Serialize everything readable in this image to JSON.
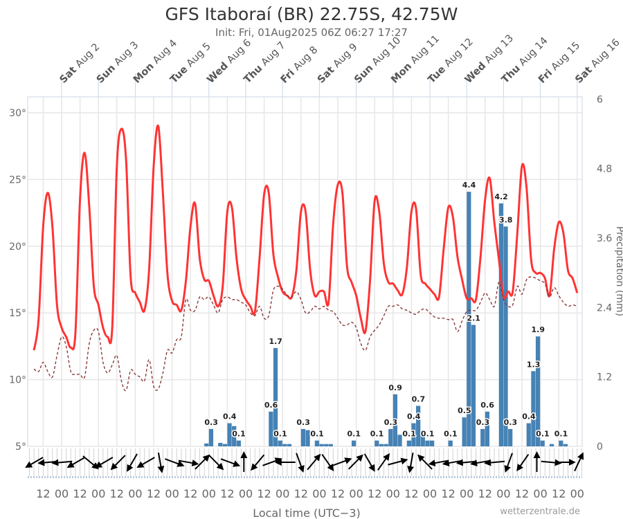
{
  "header": {
    "title": "GFS Itaboraí (BR) 22.75S, 42.75W",
    "subtitle": "Init: Fri, 01Aug2025 06Z 06:27 17:27"
  },
  "footer": {
    "xlabel": "Local time (UTC−3)",
    "credit": "wetterzentrale.de"
  },
  "chart_data": {
    "type": "line+bar",
    "xlabel": "Local time (UTC−3)",
    "y_left": {
      "ticks": [
        30,
        25,
        20,
        15,
        10,
        5
      ],
      "tick_labels": [
        "30°",
        "25°",
        "20°",
        "15°",
        "10°",
        "5°"
      ],
      "range": [
        5,
        31.2
      ]
    },
    "y_right": {
      "label": "Precipitation (mm)",
      "ticks": [
        6,
        4.8,
        3.6,
        2.4,
        1.2,
        0
      ],
      "tick_labels": [
        "6",
        "4.8",
        "3.6",
        "2.4",
        "1.2",
        "0"
      ],
      "range": [
        0,
        6
      ]
    },
    "grid": true,
    "top_day_labels": [
      {
        "weekday": "Sat",
        "date": "Aug 2"
      },
      {
        "weekday": "Sun",
        "date": "Aug 3"
      },
      {
        "weekday": "Mon",
        "date": "Aug 4"
      },
      {
        "weekday": "Tue",
        "date": "Aug 5"
      },
      {
        "weekday": "Wed",
        "date": "Aug 6"
      },
      {
        "weekday": "Thu",
        "date": "Aug 7"
      },
      {
        "weekday": "Fri",
        "date": "Aug 8"
      },
      {
        "weekday": "Sat",
        "date": "Aug 9"
      },
      {
        "weekday": "Sun",
        "date": "Aug 10"
      },
      {
        "weekday": "Mon",
        "date": "Aug 11"
      },
      {
        "weekday": "Tue",
        "date": "Aug 12"
      },
      {
        "weekday": "Wed",
        "date": "Aug 13"
      },
      {
        "weekday": "Thu",
        "date": "Aug 14"
      },
      {
        "weekday": "Fri",
        "date": "Aug 15"
      },
      {
        "weekday": "Sat",
        "date": "Aug 16"
      }
    ],
    "x_tick_labels": [
      "12",
      "00",
      "12",
      "00",
      "12",
      "00",
      "12",
      "00",
      "12",
      "00",
      "12",
      "00",
      "12",
      "00",
      "12",
      "00",
      "12",
      "00",
      "12",
      "00",
      "12",
      "00",
      "12",
      "00",
      "12",
      "00",
      "12",
      "00",
      "12",
      "00"
    ],
    "x": [
      "Aug 1 06:00",
      "Aug 1 09:00",
      "Aug 1 12:00",
      "Aug 1 15:00",
      "Aug 1 18:00",
      "Aug 1 21:00",
      "Aug 2 00:00",
      "Aug 2 03:00",
      "Aug 2 06:00",
      "Aug 2 09:00",
      "Aug 2 12:00",
      "Aug 2 15:00",
      "Aug 2 18:00",
      "Aug 2 21:00",
      "Aug 3 00:00",
      "Aug 3 03:00",
      "Aug 3 06:00",
      "Aug 3 09:00",
      "Aug 3 12:00",
      "Aug 3 15:00",
      "Aug 3 18:00",
      "Aug 3 21:00",
      "Aug 4 00:00",
      "Aug 4 03:00",
      "Aug 4 06:00",
      "Aug 4 09:00",
      "Aug 4 12:00",
      "Aug 4 15:00",
      "Aug 4 18:00",
      "Aug 4 21:00",
      "Aug 5 00:00",
      "Aug 5 03:00",
      "Aug 5 06:00",
      "Aug 5 09:00",
      "Aug 5 12:00",
      "Aug 5 15:00",
      "Aug 5 18:00",
      "Aug 5 21:00",
      "Aug 6 00:00",
      "Aug 6 03:00",
      "Aug 6 06:00",
      "Aug 6 09:00",
      "Aug 6 12:00",
      "Aug 6 15:00",
      "Aug 6 18:00",
      "Aug 6 21:00",
      "Aug 7 00:00",
      "Aug 7 03:00",
      "Aug 7 06:00",
      "Aug 7 09:00",
      "Aug 7 12:00",
      "Aug 7 15:00",
      "Aug 7 18:00",
      "Aug 7 21:00",
      "Aug 8 00:00",
      "Aug 8 03:00",
      "Aug 8 06:00",
      "Aug 8 09:00",
      "Aug 8 12:00",
      "Aug 8 15:00",
      "Aug 8 18:00",
      "Aug 8 21:00",
      "Aug 9 00:00",
      "Aug 9 03:00",
      "Aug 9 06:00",
      "Aug 9 09:00",
      "Aug 9 12:00",
      "Aug 9 15:00",
      "Aug 9 18:00",
      "Aug 9 21:00",
      "Aug 10 00:00",
      "Aug 10 03:00",
      "Aug 10 06:00",
      "Aug 10 09:00",
      "Aug 10 12:00",
      "Aug 10 15:00",
      "Aug 10 18:00",
      "Aug 10 21:00",
      "Aug 11 00:00",
      "Aug 11 03:00",
      "Aug 11 06:00",
      "Aug 11 09:00",
      "Aug 11 12:00",
      "Aug 11 15:00",
      "Aug 11 18:00",
      "Aug 11 21:00",
      "Aug 12 00:00",
      "Aug 12 03:00",
      "Aug 12 06:00",
      "Aug 12 09:00",
      "Aug 12 12:00",
      "Aug 12 15:00",
      "Aug 12 18:00",
      "Aug 12 21:00",
      "Aug 13 00:00",
      "Aug 13 03:00",
      "Aug 13 06:00",
      "Aug 13 09:00",
      "Aug 13 12:00",
      "Aug 13 15:00",
      "Aug 13 18:00",
      "Aug 13 21:00",
      "Aug 14 00:00",
      "Aug 14 03:00",
      "Aug 14 06:00",
      "Aug 14 09:00",
      "Aug 14 12:00",
      "Aug 14 15:00",
      "Aug 14 18:00",
      "Aug 14 21:00",
      "Aug 15 00:00",
      "Aug 15 03:00",
      "Aug 15 06:00",
      "Aug 15 09:00",
      "Aug 15 12:00",
      "Aug 15 15:00",
      "Aug 15 18:00",
      "Aug 15 21:00",
      "Aug 16 00:00"
    ],
    "series": [
      {
        "kind": "line",
        "style": "solid",
        "color": "#ff3333",
        "axis": "left",
        "values": [
          12.2,
          14.5,
          21.5,
          24.0,
          21.5,
          15.6,
          13.9,
          13.2,
          12.4,
          13.5,
          23.5,
          27.0,
          23.0,
          17.0,
          15.6,
          13.9,
          13.2,
          13.9,
          26.0,
          28.8,
          26.5,
          17.7,
          16.5,
          15.8,
          15.2,
          18.2,
          26.0,
          29.0,
          24.0,
          17.9,
          15.9,
          15.6,
          15.2,
          17.4,
          21.5,
          23.2,
          19.1,
          17.5,
          17.4,
          16.3,
          15.5,
          17.0,
          22.6,
          22.9,
          19.1,
          16.8,
          16.0,
          15.5,
          15.1,
          19.1,
          23.9,
          24.0,
          19.4,
          17.7,
          16.6,
          16.3,
          16.2,
          18.2,
          22.6,
          22.6,
          18.2,
          16.3,
          16.6,
          16.6,
          15.8,
          21.7,
          24.6,
          24.0,
          18.5,
          17.3,
          16.3,
          14.6,
          13.6,
          17.4,
          23.4,
          22.6,
          18.7,
          17.3,
          17.2,
          16.7,
          16.4,
          18.4,
          22.6,
          22.8,
          17.9,
          17.2,
          16.8,
          16.4,
          16.2,
          19.8,
          22.9,
          22.2,
          19.2,
          17.5,
          16.1,
          16.1,
          16.0,
          19.2,
          23.5,
          25.1,
          21.8,
          19.0,
          16.2,
          16.6,
          16.6,
          21.0,
          26.0,
          24.4,
          19.0,
          18.0,
          18.0,
          17.6,
          16.3,
          19.8,
          21.8,
          21.0,
          18.2,
          17.6,
          16.5
        ]
      },
      {
        "kind": "line",
        "style": "dashed",
        "color": "#8b3a3a",
        "axis": "left",
        "values": [
          10.8,
          10.6,
          11.3,
          10.6,
          10.2,
          11.8,
          13.2,
          12.5,
          10.6,
          10.4,
          10.4,
          10.2,
          12.7,
          13.7,
          13.6,
          11.3,
          10.5,
          11.1,
          11.8,
          9.9,
          9.2,
          10.7,
          10.4,
          10.2,
          9.9,
          11.5,
          9.5,
          9.3,
          10.5,
          12.2,
          12.0,
          13.0,
          13.2,
          16.0,
          15.2,
          15.2,
          16.2,
          16.0,
          16.2,
          15.6,
          15.0,
          16.0,
          16.2,
          16.0,
          16.0,
          15.8,
          15.6,
          15.0,
          14.8,
          15.5,
          14.6,
          14.8,
          16.7,
          17.0,
          16.8,
          16.3,
          16.2,
          16.6,
          16.0,
          15.0,
          15.1,
          15.5,
          15.3,
          15.5,
          15.2,
          15.1,
          14.6,
          14.1,
          14.1,
          14.3,
          13.9,
          12.7,
          12.2,
          13.2,
          13.7,
          14.1,
          14.8,
          15.5,
          15.5,
          15.6,
          15.3,
          15.2,
          15.0,
          14.9,
          15.2,
          15.3,
          15.0,
          14.7,
          14.6,
          14.6,
          14.5,
          14.5,
          13.6,
          14.4,
          15.1,
          15.2,
          15.2,
          15.8,
          16.5,
          16.0,
          15.5,
          17.3,
          16.0,
          15.5,
          15.6,
          17.0,
          16.4,
          17.5,
          17.7,
          17.6,
          17.4,
          17.2,
          16.2,
          16.9,
          16.3,
          15.8,
          15.5,
          15.6,
          15.5
        ]
      }
    ],
    "precipitation": {
      "color": "#4682b4",
      "interval_hours": 3,
      "bars": [
        {
          "start": "Aug 5 21:00",
          "value": 0.05
        },
        {
          "start": "Aug 6 00:00",
          "value": 0.3,
          "label": "0.3"
        },
        {
          "start": "Aug 6 06:00",
          "value": 0.06
        },
        {
          "start": "Aug 6 09:00",
          "value": 0.04
        },
        {
          "start": "Aug 6 12:00",
          "value": 0.4,
          "label": "0.4"
        },
        {
          "start": "Aug 6 15:00",
          "value": 0.35
        },
        {
          "start": "Aug 6 18:00",
          "value": 0.1,
          "label": "0.1"
        },
        {
          "start": "Aug 7 15:00",
          "value": 0.6,
          "label": "0.6"
        },
        {
          "start": "Aug 7 18:00",
          "value": 1.7,
          "label": "1.7"
        },
        {
          "start": "Aug 7 21:00",
          "value": 0.1,
          "label": "0.1"
        },
        {
          "start": "Aug 8 00:00",
          "value": 0.04
        },
        {
          "start": "Aug 8 03:00",
          "value": 0.04
        },
        {
          "start": "Aug 8 12:00",
          "value": 0.3,
          "label": "0.3"
        },
        {
          "start": "Aug 8 15:00",
          "value": 0.28
        },
        {
          "start": "Aug 8 21:00",
          "value": 0.1,
          "label": "0.1"
        },
        {
          "start": "Aug 9 00:00",
          "value": 0.04
        },
        {
          "start": "Aug 9 03:00",
          "value": 0.04
        },
        {
          "start": "Aug 9 06:00",
          "value": 0.04
        },
        {
          "start": "Aug 9 21:00",
          "value": 0.1,
          "label": "0.1"
        },
        {
          "start": "Aug 10 12:00",
          "value": 0.1,
          "label": "0.1"
        },
        {
          "start": "Aug 10 15:00",
          "value": 0.04
        },
        {
          "start": "Aug 10 18:00",
          "value": 0.04
        },
        {
          "start": "Aug 10 21:00",
          "value": 0.3,
          "label": "0.3"
        },
        {
          "start": "Aug 11 00:00",
          "value": 0.9,
          "label": "0.9"
        },
        {
          "start": "Aug 11 03:00",
          "value": 0.2
        },
        {
          "start": "Aug 11 09:00",
          "value": 0.1,
          "label": "0.1"
        },
        {
          "start": "Aug 11 12:00",
          "value": 0.4,
          "label": "0.4"
        },
        {
          "start": "Aug 11 15:00",
          "value": 0.7,
          "label": "0.7"
        },
        {
          "start": "Aug 11 18:00",
          "value": 0.25
        },
        {
          "start": "Aug 11 21:00",
          "value": 0.1,
          "label": "0.1"
        },
        {
          "start": "Aug 12 00:00",
          "value": 0.1
        },
        {
          "start": "Aug 12 12:00",
          "value": 0.1,
          "label": "0.1"
        },
        {
          "start": "Aug 12 21:00",
          "value": 0.5,
          "label": "0.5"
        },
        {
          "start": "Aug 13 00:00",
          "value": 4.4,
          "label": "4.4"
        },
        {
          "start": "Aug 13 03:00",
          "value": 2.1,
          "label": "2.1"
        },
        {
          "start": "Aug 13 09:00",
          "value": 0.3,
          "label": "0.3"
        },
        {
          "start": "Aug 13 12:00",
          "value": 0.6,
          "label": "0.6"
        },
        {
          "start": "Aug 13 21:00",
          "value": 4.2,
          "label": "4.2"
        },
        {
          "start": "Aug 14 00:00",
          "value": 3.8,
          "label": "3.8"
        },
        {
          "start": "Aug 14 03:00",
          "value": 0.3,
          "label": "0.3"
        },
        {
          "start": "Aug 14 15:00",
          "value": 0.4,
          "label": "0.4"
        },
        {
          "start": "Aug 14 18:00",
          "value": 1.3,
          "label": "1.3"
        },
        {
          "start": "Aug 14 21:00",
          "value": 1.9,
          "label": "1.9"
        },
        {
          "start": "Aug 15 00:00",
          "value": 0.1,
          "label": "0.1"
        },
        {
          "start": "Aug 15 06:00",
          "value": 0.04
        },
        {
          "start": "Aug 15 12:00",
          "value": 0.1,
          "label": "0.1"
        },
        {
          "start": "Aug 15 15:00",
          "value": 0.04
        }
      ]
    },
    "wind_arrows_direction_deg": [
      240,
      265,
      265,
      240,
      130,
      240,
      225,
      210,
      240,
      170,
      110,
      100,
      45,
      135,
      110,
      0,
      220,
      70,
      270,
      160,
      40,
      145,
      70,
      45,
      150,
      35,
      75,
      190,
      315,
      260,
      260,
      265,
      260,
      265,
      200,
      215,
      0,
      95,
      90,
      25
    ]
  }
}
